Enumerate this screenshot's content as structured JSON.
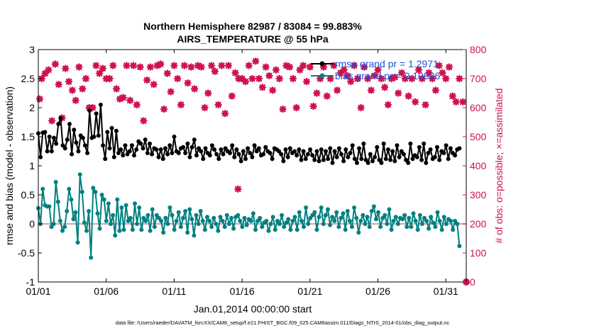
{
  "chart_data": {
    "type": "line",
    "title_line1": "Northern Hemisphere 82987 / 83084 = 99.883%",
    "title_line2": "AIRS_TEMPERATURE @ 55 hPa",
    "xlabel": "Jan.01,2014 00:00:00 start",
    "ylabel_left": "rmse and bias (model - observation)",
    "ylabel_right": "# of obs: o=possible; ×=assimilated",
    "footer": "data file: /Users/raeder/DAI/ATM_forcXX/CAM6_setup/f.e21.FHIST_BGC.f09_025.CAM6assim.011/Diags_NTrS_2014-01/obs_diag_output.nc",
    "xlim": [
      0,
      31.5
    ],
    "ylim_left": [
      -1,
      3
    ],
    "ylim_right": [
      0,
      800
    ],
    "x_ticks": [
      0,
      5,
      10,
      15,
      20,
      25,
      30
    ],
    "x_tick_labels": [
      "01/01",
      "01/06",
      "01/11",
      "01/16",
      "01/21",
      "01/26",
      "01/31"
    ],
    "y_left_ticks": [
      -1,
      -0.5,
      0,
      0.5,
      1,
      1.5,
      2,
      2.5,
      3
    ],
    "y_left_tick_labels": [
      "-1",
      "-0.5",
      "0",
      "0.5",
      "1",
      "1.5",
      "2",
      "2.5",
      "3"
    ],
    "y_right_ticks": [
      0,
      100,
      200,
      300,
      400,
      500,
      600,
      700,
      800
    ],
    "y_right_tick_labels": [
      "0",
      "100",
      "200",
      "300",
      "400",
      "500",
      "600",
      "700",
      "800"
    ],
    "legend": {
      "position": "top-right",
      "rmse_label": "rmse grand pr = 1.2971",
      "bias_label": "bias grand pr = 0.10936"
    },
    "colors": {
      "rmse": "#000000",
      "bias": "#008080",
      "obs": "#d0104c",
      "zero_line": "#d9a0a8",
      "label_blue": "#1f4fd8"
    },
    "series": [
      {
        "name": "rmse",
        "axis": "left",
        "values": [
          1.56,
          1.15,
          1.57,
          1.58,
          1.25,
          1.5,
          1.25,
          1.48,
          1.38,
          1.72,
          1.82,
          1.35,
          1.3,
          1.45,
          1.72,
          1.2,
          1.62,
          1.4,
          1.25,
          1.52,
          1.48,
          1.35,
          1.22,
          1.95,
          1.48,
          1.5,
          1.9,
          1.52,
          2.05,
          1.35,
          1.12,
          1.58,
          1.3,
          1.65,
          1.15,
          1.6,
          1.22,
          1.28,
          1.18,
          1.35,
          1.2,
          1.25,
          1.35,
          1.18,
          1.28,
          1.42,
          1.38,
          1.3,
          1.45,
          1.22,
          1.38,
          1.2,
          1.3,
          1.28,
          1.15,
          1.28,
          1.12,
          1.3,
          1.2,
          1.35,
          1.22,
          1.5,
          1.25,
          1.22,
          1.3,
          1.32,
          1.22,
          1.38,
          1.15,
          1.32,
          1.45,
          1.18,
          1.3,
          1.25,
          1.12,
          1.3,
          1.22,
          1.18,
          1.35,
          1.28,
          1.2,
          1.12,
          1.28,
          1.2,
          1.3,
          1.25,
          1.22,
          1.35,
          1.15,
          1.28,
          1.2,
          1.08,
          1.25,
          1.12,
          1.3,
          1.22,
          1.15,
          1.35,
          1.25,
          1.3,
          1.18,
          1.2,
          1.32,
          1.25,
          1.22,
          1.12,
          1.3,
          1.28,
          1.25,
          1.2,
          1.08,
          1.28,
          1.15,
          1.3,
          1.22,
          1.25,
          1.18,
          1.28,
          1.1,
          1.25,
          1.12,
          1.2,
          1.28,
          1.18,
          1.1,
          1.25,
          1.08,
          1.28,
          1.1,
          1.25,
          1.12,
          1.3,
          1.05,
          1.25,
          1.15,
          1.3,
          1.2,
          1.08,
          1.28,
          1.15,
          1.22,
          1.35,
          1.12,
          1.05,
          1.3,
          1.12,
          1.38,
          1.1,
          1.05,
          1.2,
          1.08,
          1.15,
          1.32,
          1.1,
          1.05,
          1.38,
          1.12,
          1.28,
          1.1,
          1.25,
          1.08,
          1.35,
          1.15,
          1.25,
          1.2,
          1.1,
          1.05,
          1.38,
          1.12,
          1.18,
          1.15,
          1.32,
          1.1,
          1.38,
          1.05,
          1.22,
          1.28,
          1.12,
          1.15,
          1.32,
          1.1,
          1.25,
          1.22,
          1.35,
          1.12,
          1.3,
          1.22,
          1.18,
          1.28,
          1.3
        ]
      },
      {
        "name": "bias",
        "axis": "left",
        "values": [
          0.27,
          0.0,
          0.6,
          0.32,
          0.3,
          0.3,
          -0.05,
          0.0,
          0.72,
          0.38,
          0.05,
          -0.12,
          -0.05,
          0.22,
          0.6,
          0.42,
          0.08,
          0.2,
          -0.32,
          0.85,
          0.55,
          0.02,
          -0.12,
          0.22,
          -0.58,
          0.62,
          0.55,
          0.18,
          -0.08,
          0.5,
          0.42,
          0.05,
          0.35,
          0.0,
          0.15,
          -0.2,
          0.42,
          -0.12,
          0.28,
          -0.1,
          0.32,
          0.05,
          0.1,
          -0.1,
          0.35,
          0.0,
          0.28,
          -0.1,
          0.1,
          0.05,
          0.15,
          -0.12,
          0.25,
          -0.05,
          0.15,
          0.1,
          0.05,
          -0.15,
          0.1,
          0.0,
          0.28,
          0.15,
          -0.1,
          0.05,
          0.2,
          -0.05,
          0.1,
          0.22,
          -0.15,
          0.25,
          0.08,
          -0.2,
          0.15,
          0.0,
          0.22,
          0.05,
          -0.1,
          0.12,
          0.05,
          -0.05,
          0.1,
          0.0,
          -0.12,
          0.12,
          0.05,
          -0.05,
          0.15,
          0.0,
          0.1,
          -0.08,
          0.12,
          0.15,
          0.05,
          -0.05,
          0.1,
          -0.02,
          0.08,
          0.05,
          0.18,
          -0.1,
          0.05,
          0.1,
          -0.05,
          0.02,
          0.05,
          -0.12,
          0.0,
          0.12,
          -0.1,
          0.05,
          0.0,
          0.15,
          -0.05,
          0.02,
          0.08,
          -0.1,
          0.05,
          0.12,
          -0.1,
          0.2,
          0.05,
          -0.05,
          0.28,
          0.0,
          0.1,
          0.15,
          0.2,
          -0.1,
          0.12,
          0.28,
          0.0,
          0.15,
          0.25,
          -0.02,
          0.12,
          0.05,
          0.2,
          -0.05,
          0.1,
          0.18,
          -0.1,
          0.22,
          0.05,
          -0.05,
          0.28,
          0.1,
          -0.15,
          0.05,
          0.15,
          0.0,
          0.12,
          -0.05,
          0.22,
          0.3,
          0.08,
          0.2,
          -0.05,
          0.1,
          0.15,
          0.0,
          0.25,
          -0.1,
          0.05,
          0.12,
          0.0,
          0.1,
          0.08,
          0.15,
          -0.05,
          0.1,
          -0.05,
          0.18,
          0.05,
          -0.1,
          0.15,
          0.0,
          0.1,
          0.05,
          -0.08,
          0.12,
          0.02,
          -0.05,
          0.2,
          0.05,
          -0.1,
          0.12,
          0.0,
          0.08,
          0.05,
          -0.1,
          0.05,
          0.0,
          -0.38
        ]
      },
      {
        "name": "obs_assimilated",
        "axis": "right",
        "x": [
          0.1,
          0.25,
          0.5,
          0.75,
          1.0,
          1.25,
          1.5,
          1.75,
          2.0,
          2.25,
          2.5,
          2.75,
          3.0,
          3.25,
          3.5,
          3.75,
          4.0,
          4.25,
          4.5,
          4.75,
          5.0,
          5.25,
          5.5,
          5.75,
          6.0,
          6.25,
          6.5,
          6.75,
          7.0,
          7.25,
          7.5,
          7.75,
          8.0,
          8.25,
          8.5,
          8.75,
          9.0,
          9.25,
          9.5,
          9.75,
          10.0,
          10.25,
          10.5,
          10.75,
          11.0,
          11.25,
          11.5,
          11.75,
          12.0,
          12.25,
          12.5,
          12.75,
          13.0,
          13.25,
          13.5,
          13.75,
          14.0,
          14.25,
          14.5,
          14.75,
          15.0,
          15.25,
          15.5,
          15.75,
          16.0,
          16.25,
          16.5,
          16.75,
          17.0,
          17.25,
          17.5,
          17.75,
          18.0,
          18.25,
          18.5,
          18.75,
          19.0,
          19.25,
          19.5,
          19.75,
          20.0,
          20.25,
          20.5,
          20.75,
          21.0,
          21.25,
          21.5,
          21.75,
          22.0,
          22.25,
          22.5,
          22.75,
          23.0,
          23.25,
          23.5,
          23.75,
          24.0,
          24.25,
          24.5,
          24.75,
          25.0,
          25.25,
          25.5,
          25.75,
          26.0,
          26.25,
          26.5,
          26.75,
          27.0,
          27.25,
          27.5,
          27.75,
          28.0,
          28.25,
          28.5,
          28.75,
          29.0,
          29.25,
          29.5,
          29.75,
          30.0,
          30.25,
          30.5,
          30.75,
          31.0,
          31.25,
          14.7
        ],
        "values": [
          630,
          700,
          718,
          730,
          555,
          750,
          680,
          565,
          735,
          690,
          660,
          625,
          740,
          665,
          700,
          600,
          600,
          745,
          718,
          735,
          700,
          700,
          745,
          665,
          630,
          635,
          745,
          625,
          745,
          610,
          740,
          555,
          695,
          740,
          680,
          745,
          750,
          595,
          718,
          655,
          745,
          700,
          610,
          745,
          685,
          740,
          665,
          745,
          740,
          600,
          650,
          745,
          725,
          610,
          745,
          580,
          745,
          640,
          720,
          700,
          700,
          690,
          745,
          700,
          760,
          700,
          670,
          740,
          710,
          660,
          730,
          700,
          595,
          745,
          740,
          700,
          600,
          730,
          745,
          690,
          740,
          605,
          650,
          700,
          740,
          640,
          700,
          745,
          660,
          720,
          730,
          710,
          690,
          745,
          700,
          600,
          740,
          700,
          660,
          710,
          730,
          700,
          670,
          610,
          700,
          705,
          650,
          720,
          700,
          640,
          700,
          620,
          730,
          700,
          610,
          720,
          700,
          660,
          745,
          720,
          700,
          740,
          640,
          620,
          700,
          620,
          320
        ]
      },
      {
        "name": "obs_possible",
        "axis": "right",
        "x": [
          31.5
        ],
        "values": [
          0
        ]
      }
    ]
  }
}
